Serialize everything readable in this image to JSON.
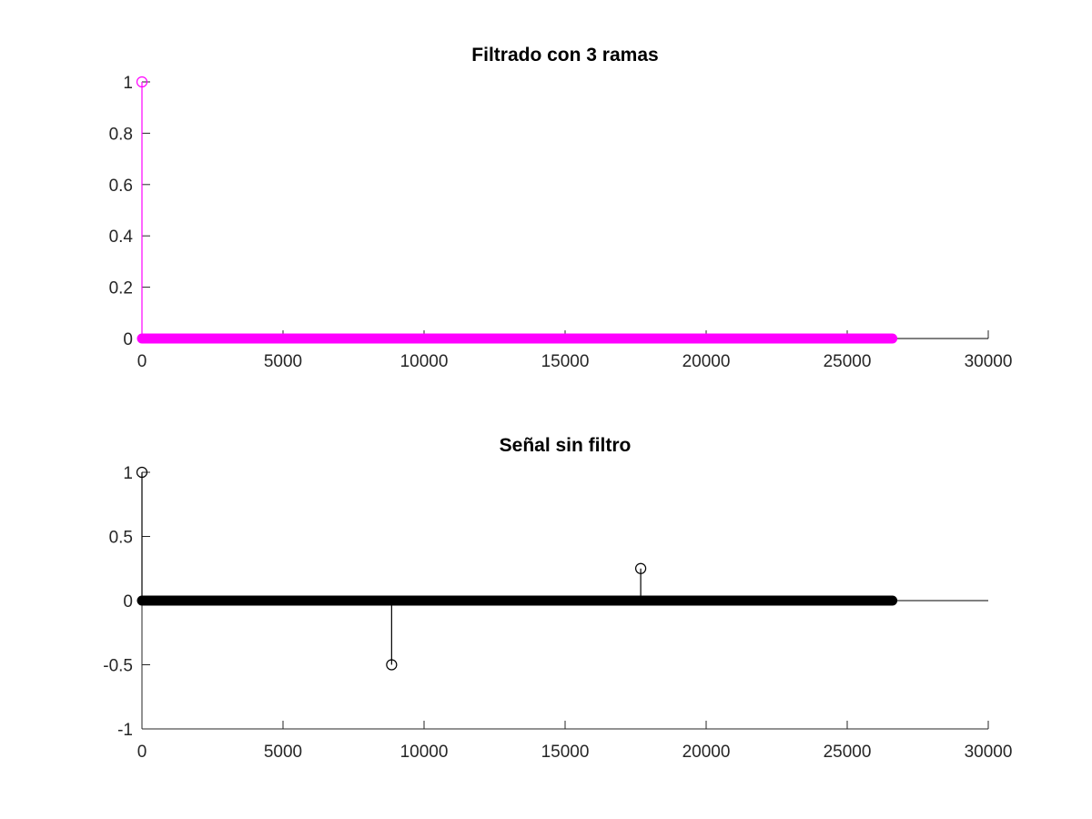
{
  "chart_data": [
    {
      "type": "stem",
      "title": "Filtrado con 3 ramas",
      "xlabel": "",
      "ylabel": "",
      "xlim": [
        0,
        30000
      ],
      "ylim": [
        0,
        1
      ],
      "xticks": [
        0,
        5000,
        10000,
        15000,
        20000,
        25000,
        30000
      ],
      "xtick_labels": [
        "0",
        "5000",
        "10000",
        "15000",
        "20000",
        "25000",
        "30000"
      ],
      "yticks": [
        0,
        0.2,
        0.4,
        0.6,
        0.8,
        1
      ],
      "ytick_labels": [
        "0",
        "0.2",
        "0.4",
        "0.6",
        "0.8",
        "1"
      ],
      "grid": false,
      "color": "#ff00ff",
      "series": [
        {
          "n_samples": 26600,
          "zero_run": [
            0,
            26600
          ],
          "nonzero_points": [
            {
              "x": 0,
              "y": 1
            }
          ]
        }
      ]
    },
    {
      "type": "stem",
      "title": "Señal sin filtro",
      "xlabel": "",
      "ylabel": "",
      "xlim": [
        0,
        30000
      ],
      "ylim": [
        -1,
        1
      ],
      "xticks": [
        0,
        5000,
        10000,
        15000,
        20000,
        25000,
        30000
      ],
      "xtick_labels": [
        "0",
        "5000",
        "10000",
        "15000",
        "20000",
        "25000",
        "30000"
      ],
      "yticks": [
        -1,
        -0.5,
        0,
        0.5,
        1
      ],
      "ytick_labels": [
        "-1",
        "-0.5",
        "0",
        "0.5",
        "1"
      ],
      "grid": false,
      "color": "#000000",
      "series": [
        {
          "n_samples": 26600,
          "zero_run": [
            0,
            26600
          ],
          "nonzero_points": [
            {
              "x": 0,
              "y": 1
            },
            {
              "x": 8850,
              "y": -0.5
            },
            {
              "x": 17680,
              "y": 0.25
            }
          ]
        }
      ]
    }
  ]
}
